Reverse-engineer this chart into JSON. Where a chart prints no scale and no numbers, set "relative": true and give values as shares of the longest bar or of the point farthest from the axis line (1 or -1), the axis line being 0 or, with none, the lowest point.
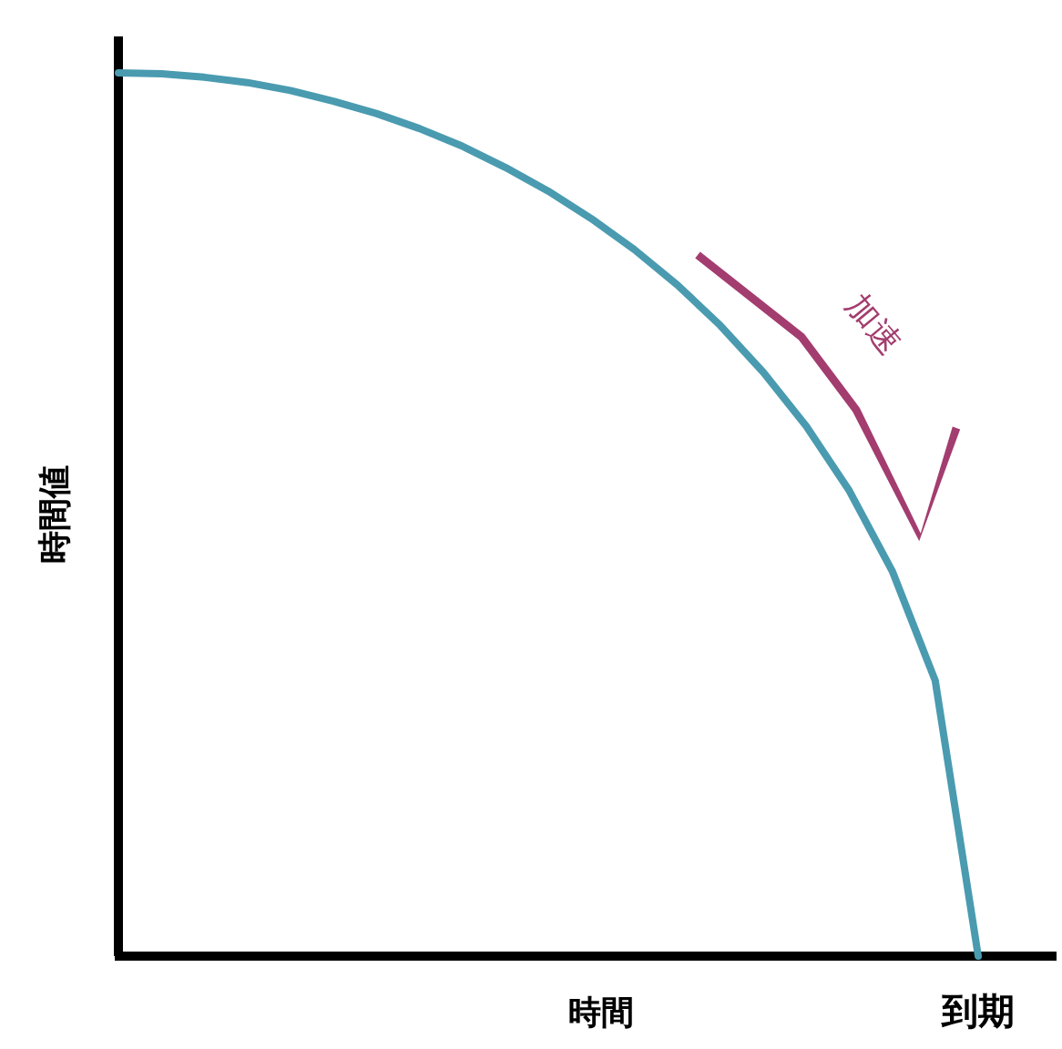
{
  "chart_data": {
    "type": "line",
    "relative": true,
    "xlabel": "時間",
    "ylabel": "時間値",
    "categories": [
      null,
      null,
      null,
      null,
      null,
      null,
      null,
      null,
      null,
      null,
      null,
      null,
      null,
      null,
      null,
      null,
      null,
      null,
      null,
      null,
      null
    ],
    "series": [
      {
        "color": "#4a9bb0",
        "values": [
          1,
          0.999,
          0.995,
          0.989,
          0.98,
          0.968,
          0.954,
          0.937,
          0.917,
          0.893,
          0.866,
          0.835,
          0.8,
          0.76,
          0.714,
          0.661,
          0.6,
          0.527,
          0.436,
          0.312,
          0
        ]
      }
    ],
    "annotations": [
      "加速",
      "到期"
    ]
  }
}
